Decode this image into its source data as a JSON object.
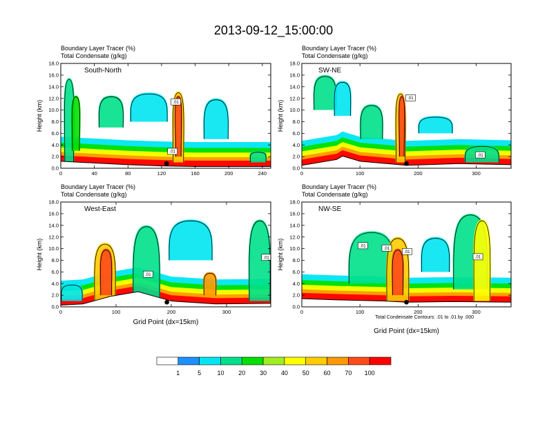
{
  "figure": {
    "title": "2013-09-12_15:00:00"
  },
  "colors": {
    "levels": [
      "#ffffff",
      "#1e90ff",
      "#00e6f2",
      "#00e08a",
      "#00e000",
      "#a0ee20",
      "#ffff00",
      "#ffcc00",
      "#ff9900",
      "#ff4a1a",
      "#ff0000"
    ],
    "axis": "#000000",
    "contour": "#000000"
  },
  "colorbar": {
    "labels": [
      "1",
      "5",
      "10",
      "20",
      "30",
      "40",
      "50",
      "60",
      "70",
      "100"
    ]
  },
  "note": "Total Condensate Contours: .01 to .01 by .000",
  "chart_data": [
    {
      "type": "heatmap",
      "title": "South-North",
      "subtitle1": "Boundary Layer Tracer   (%)",
      "subtitle2": "Total Condensate   (g/kg)",
      "xlabel": "",
      "ylabel": "Height (km)",
      "xlim": [
        0,
        250
      ],
      "xticks": [
        "0",
        "40",
        "80",
        "120",
        "160",
        "200",
        "240"
      ],
      "ylim": [
        0,
        18
      ],
      "yticks": [
        "0.0",
        "2.0",
        "4.0",
        "6.0",
        "8.0",
        "10.0",
        "12.0",
        "14.0",
        "16.0",
        "18.0"
      ],
      "marker_x": 126,
      "contour_labels": [
        {
          "text": ".01",
          "x": 137,
          "y": 11.4
        },
        {
          "text": ".01",
          "x": 133,
          "y": 2.9
        }
      ],
      "terrain": [
        [
          0,
          1.2
        ],
        [
          40,
          0.9
        ],
        [
          80,
          0.6
        ],
        [
          120,
          0.4
        ],
        [
          160,
          0.3
        ],
        [
          200,
          0.3
        ],
        [
          250,
          0.3
        ]
      ],
      "plumes": [
        {
          "x": 10,
          "width": 12,
          "base": 1,
          "top": 15.5,
          "level": 3
        },
        {
          "x": 18,
          "width": 10,
          "base": 3,
          "top": 12.5,
          "level": 4
        },
        {
          "x": 60,
          "width": 30,
          "base": 7,
          "top": 12.5,
          "level": 3
        },
        {
          "x": 105,
          "width": 45,
          "base": 8,
          "top": 13,
          "level": 2
        },
        {
          "x": 140,
          "width": 14,
          "base": 1,
          "top": 13.2,
          "level": 7
        },
        {
          "x": 140,
          "width": 8,
          "base": 2,
          "top": 12.5,
          "level": 9
        },
        {
          "x": 185,
          "width": 30,
          "base": 5,
          "top": 12,
          "level": 2
        },
        {
          "x": 235,
          "width": 20,
          "base": 1,
          "top": 3,
          "level": 3
        }
      ]
    },
    {
      "type": "heatmap",
      "title": "SW-NE",
      "subtitle1": "Boundary Layer Tracer   (%)",
      "subtitle2": "Total Condensate   (g/kg)",
      "xlabel": "",
      "ylabel": "Height (km)",
      "xlim": [
        0,
        360
      ],
      "xticks": [
        "0",
        "100",
        "200",
        "300"
      ],
      "ylim": [
        0,
        18
      ],
      "yticks": [
        "0.0",
        "2.0",
        "4.0",
        "6.0",
        "8.0",
        "10.0",
        "12.0",
        "14.0",
        "16.0",
        "18.0"
      ],
      "marker_x": 180,
      "contour_labels": [
        {
          "text": ".01",
          "x": 187,
          "y": 12.1
        },
        {
          "text": ".01",
          "x": 307,
          "y": 2.3
        }
      ],
      "terrain": [
        [
          0,
          0.5
        ],
        [
          60,
          1.5
        ],
        [
          70,
          2.1
        ],
        [
          100,
          1.2
        ],
        [
          180,
          0.5
        ],
        [
          270,
          0.8
        ],
        [
          360,
          0.6
        ]
      ],
      "plumes": [
        {
          "x": 40,
          "width": 40,
          "base": 10,
          "top": 16,
          "level": 3
        },
        {
          "x": 70,
          "width": 30,
          "base": 9,
          "top": 15,
          "level": 2
        },
        {
          "x": 120,
          "width": 40,
          "base": 5,
          "top": 11,
          "level": 3
        },
        {
          "x": 170,
          "width": 18,
          "base": 1,
          "top": 13,
          "level": 7
        },
        {
          "x": 172,
          "width": 10,
          "base": 2,
          "top": 12.5,
          "level": 9
        },
        {
          "x": 230,
          "width": 60,
          "base": 6,
          "top": 9,
          "level": 2
        },
        {
          "x": 310,
          "width": 60,
          "base": 1,
          "top": 4,
          "level": 3
        }
      ]
    },
    {
      "type": "heatmap",
      "title": "West-East",
      "subtitle1": "Boundary Layer Tracer   (%)",
      "subtitle2": "Total Condensate   (g/kg)",
      "xlabel": "Grid Point (dx=15km)",
      "ylabel": "Height (km)",
      "xlim": [
        0,
        380
      ],
      "xticks": [
        "0",
        "100",
        "200",
        "300"
      ],
      "ylim": [
        0,
        18
      ],
      "yticks": [
        "0.0",
        "2.0",
        "4.0",
        "6.0",
        "8.0",
        "10.0",
        "12.0",
        "14.0",
        "16.0",
        "18.0"
      ],
      "marker_x": 192,
      "contour_labels": [
        {
          "text": ".01",
          "x": 158,
          "y": 5.6
        },
        {
          "text": ".01",
          "x": 372,
          "y": 8.5
        }
      ],
      "terrain": [
        [
          0,
          0.3
        ],
        [
          40,
          0.5
        ],
        [
          90,
          1.8
        ],
        [
          140,
          2.6
        ],
        [
          200,
          1.0
        ],
        [
          280,
          0.5
        ],
        [
          380,
          0.6
        ]
      ],
      "plumes": [
        {
          "x": 80,
          "width": 40,
          "base": 1,
          "top": 11,
          "level": 7
        },
        {
          "x": 82,
          "width": 22,
          "base": 2,
          "top": 10,
          "level": 9
        },
        {
          "x": 155,
          "width": 50,
          "base": 1,
          "top": 14,
          "level": 3
        },
        {
          "x": 235,
          "width": 80,
          "base": 8,
          "top": 15,
          "level": 2
        },
        {
          "x": 270,
          "width": 24,
          "base": 2,
          "top": 6,
          "level": 8
        },
        {
          "x": 360,
          "width": 40,
          "base": 1,
          "top": 15,
          "level": 3
        },
        {
          "x": 20,
          "width": 40,
          "base": 1,
          "top": 4,
          "level": 2
        }
      ]
    },
    {
      "type": "heatmap",
      "title": "NW-SE",
      "subtitle1": "Boundary Layer Tracer   (%)",
      "subtitle2": "Total Condensate   (g/kg)",
      "xlabel": "Grid Point (dx=15km)",
      "ylabel": "Height (km)",
      "xlim": [
        0,
        360
      ],
      "xticks": [
        "0",
        "100",
        "200",
        "300"
      ],
      "ylim": [
        0,
        18
      ],
      "yticks": [
        "0.0",
        "2.0",
        "4.0",
        "6.0",
        "8.0",
        "10.0",
        "12.0",
        "14.0",
        "16.0",
        "18.0"
      ],
      "marker_x": 180,
      "contour_labels": [
        {
          "text": ".01",
          "x": 105,
          "y": 10.5
        },
        {
          "text": ".01",
          "x": 146,
          "y": 10.1
        },
        {
          "text": ".01",
          "x": 181,
          "y": 9.5
        },
        {
          "text": ".01",
          "x": 303,
          "y": 8.6
        }
      ],
      "terrain": [
        [
          0,
          1.4
        ],
        [
          60,
          1.2
        ],
        [
          140,
          1.0
        ],
        [
          180,
          0.8
        ],
        [
          260,
          0.9
        ],
        [
          360,
          0.8
        ]
      ],
      "plumes": [
        {
          "x": 120,
          "width": 80,
          "base": 4,
          "top": 13,
          "level": 3
        },
        {
          "x": 165,
          "width": 40,
          "base": 1,
          "top": 12,
          "level": 7
        },
        {
          "x": 165,
          "width": 20,
          "base": 2,
          "top": 10,
          "level": 9
        },
        {
          "x": 290,
          "width": 60,
          "base": 3,
          "top": 16,
          "level": 3
        },
        {
          "x": 310,
          "width": 30,
          "base": 1,
          "top": 15,
          "level": 6
        },
        {
          "x": 230,
          "width": 50,
          "base": 6,
          "top": 12,
          "level": 2
        }
      ]
    }
  ]
}
